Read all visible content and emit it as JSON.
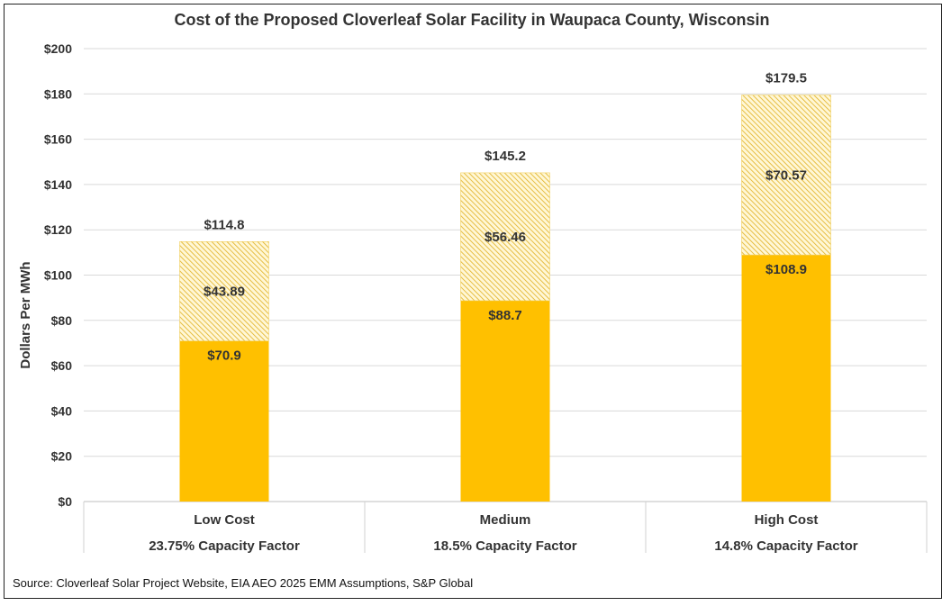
{
  "chart_data": {
    "type": "bar",
    "stacked": true,
    "title": "Cost of the Proposed Cloverleaf Solar Facility in Waupaca County, Wisconsin",
    "ylabel": "Dollars Per MWh",
    "xlabel": "",
    "ylim": [
      0,
      200
    ],
    "yticks": [
      0,
      20,
      40,
      60,
      80,
      100,
      120,
      140,
      160,
      180,
      200
    ],
    "ytick_labels": [
      "$0",
      "$20",
      "$40",
      "$60",
      "$80",
      "$100",
      "$120",
      "$140",
      "$160",
      "$180",
      "$200"
    ],
    "categories": [
      "Low Cost",
      "Medium",
      "High Cost"
    ],
    "subcategories": [
      "23.75% Capacity Factor",
      "18.5% Capacity Factor",
      "14.8% Capacity Factor"
    ],
    "series": [
      {
        "name": "Base",
        "values": [
          70.9,
          88.7,
          108.9
        ],
        "labels": [
          "$70.9",
          "$88.7",
          "$108.9"
        ],
        "color": "#FFC000"
      },
      {
        "name": "Additional",
        "values": [
          43.89,
          56.46,
          70.57
        ],
        "labels": [
          "$43.89",
          "$56.46",
          "$70.57"
        ],
        "color": "#FFC000",
        "pattern": "hatch"
      }
    ],
    "totals": [
      114.8,
      145.2,
      179.5
    ],
    "total_labels": [
      "$114.8",
      "$145.2",
      "$179.5"
    ],
    "grid": true,
    "source": "Source: Cloverleaf Solar Project Website, EIA AEO 2025 EMM Assumptions, S&P Global"
  }
}
